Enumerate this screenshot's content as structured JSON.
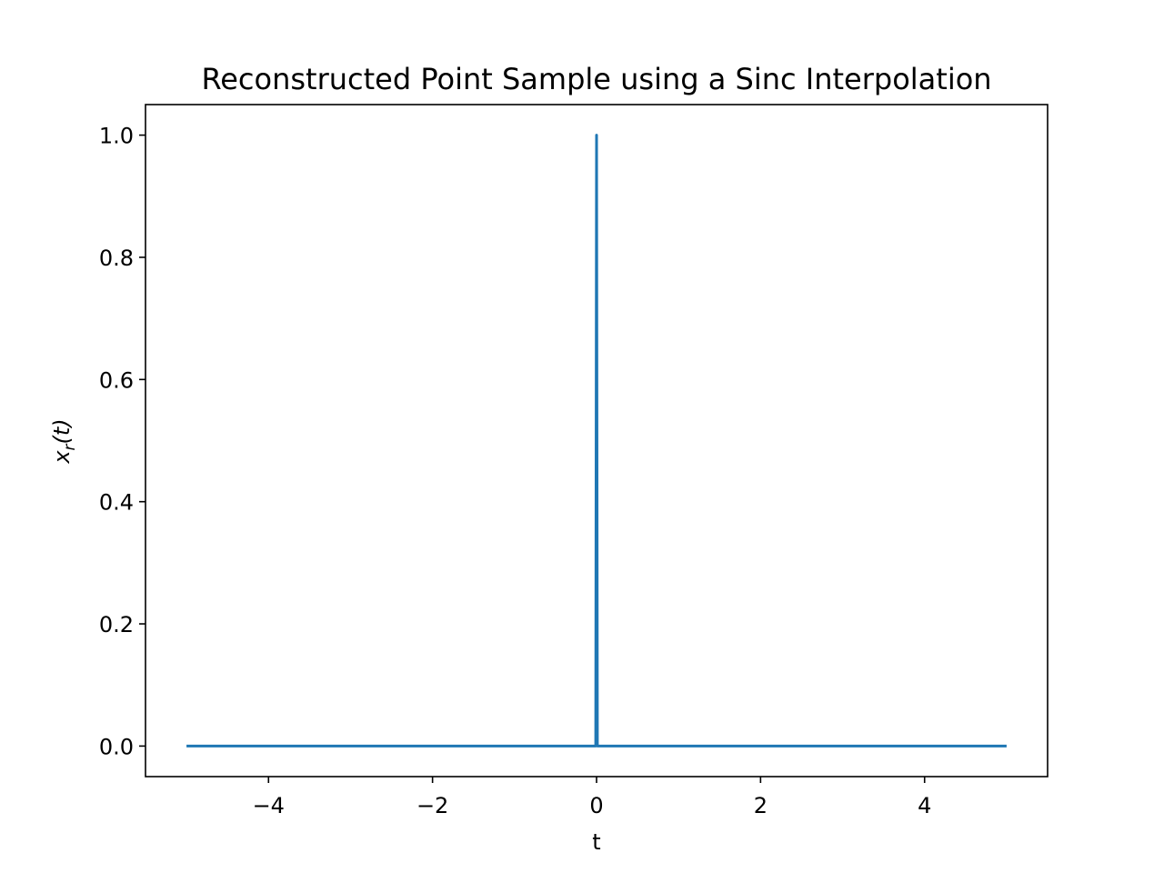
{
  "chart_data": {
    "type": "line",
    "title": "Reconstructed Point Sample using a Sinc Interpolation",
    "xlabel": "t",
    "ylabel": {
      "prefix": "x",
      "subscript": "r",
      "suffix": "(t)"
    },
    "xlim": [
      -5.5,
      5.5
    ],
    "ylim": [
      -0.05,
      1.05
    ],
    "xticks": [
      -4,
      -2,
      0,
      2,
      4
    ],
    "xtick_labels": [
      "−4",
      "−2",
      "0",
      "2",
      "4"
    ],
    "yticks": [
      0.0,
      0.2,
      0.4,
      0.6,
      0.8,
      1.0
    ],
    "ytick_labels": [
      "0.0",
      "0.2",
      "0.4",
      "0.6",
      "0.8",
      "1.0"
    ],
    "grid": false,
    "series": [
      {
        "color": "#1f77b4",
        "x": [
          -5.0,
          -0.01,
          0.0,
          0.01,
          5.0
        ],
        "y": [
          0.0,
          0.0,
          1.0,
          0.0,
          0.0
        ]
      }
    ]
  }
}
